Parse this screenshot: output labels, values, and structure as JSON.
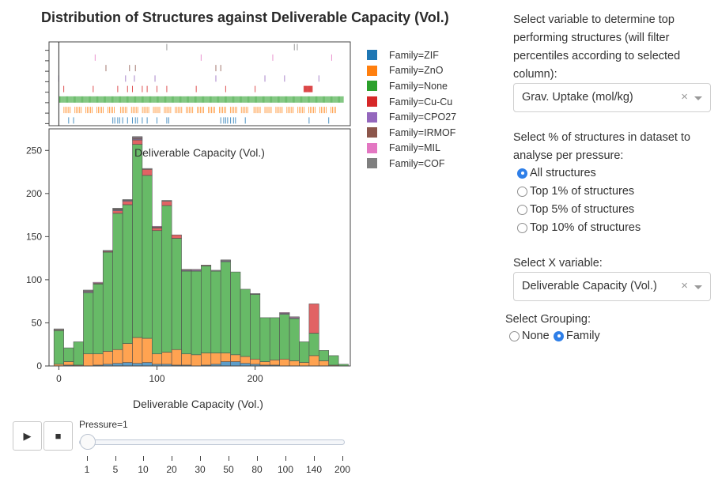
{
  "chart_data": {
    "type": "bar",
    "barmode": "stack",
    "title": "Distribution of Structures against Deliverable Capacity (Vol.)",
    "annotation": "Deliverable Capacity (Vol.)",
    "xlabel": "Deliverable Capacity (Vol.)",
    "ylabel": "",
    "xlim": [
      -10,
      297
    ],
    "ylim": [
      0,
      275
    ],
    "xticks": [
      0,
      100,
      200
    ],
    "yticks": [
      0,
      50,
      100,
      150,
      200,
      250
    ],
    "bin_width": 10,
    "bin_starts": [
      -5,
      5,
      15,
      25,
      35,
      45,
      55,
      65,
      75,
      85,
      95,
      105,
      115,
      125,
      135,
      145,
      155,
      165,
      175,
      185,
      195,
      205,
      215,
      225,
      235,
      245,
      255,
      265,
      275,
      285
    ],
    "series": [
      {
        "name": "Family=ZIF",
        "color": "#1f77b4",
        "values": [
          0,
          1,
          0,
          0,
          1,
          2,
          3,
          4,
          3,
          4,
          2,
          2,
          1,
          1,
          0,
          1,
          2,
          5,
          5,
          3,
          2,
          1,
          1,
          0,
          0,
          0,
          0,
          0,
          0,
          0
        ]
      },
      {
        "name": "Family=ZnO",
        "color": "#ff7f0e",
        "values": [
          2,
          4,
          1,
          14,
          13,
          15,
          16,
          22,
          30,
          28,
          12,
          14,
          18,
          13,
          13,
          14,
          13,
          10,
          8,
          8,
          6,
          4,
          6,
          8,
          6,
          4,
          12,
          6,
          1,
          0
        ]
      },
      {
        "name": "Family=None",
        "color": "#2ca02c",
        "values": [
          39,
          16,
          27,
          71,
          81,
          115,
          158,
          161,
          224,
          189,
          143,
          170,
          129,
          96,
          97,
          101,
          95,
          106,
          96,
          78,
          75,
          51,
          49,
          52,
          49,
          24,
          26,
          12,
          11,
          2
        ]
      },
      {
        "name": "Family=Cu-Cu",
        "color": "#d62728",
        "values": [
          0,
          0,
          0,
          0,
          0,
          1,
          3,
          4,
          5,
          7,
          3,
          5,
          4,
          0,
          0,
          0,
          0,
          0,
          0,
          0,
          0,
          0,
          0,
          0,
          0,
          0,
          34,
          0,
          0,
          0
        ]
      },
      {
        "name": "Family=CPO27",
        "color": "#9467bd",
        "values": [
          0,
          0,
          0,
          1,
          0,
          0,
          1,
          1,
          1,
          0,
          0,
          0,
          0,
          1,
          1,
          0,
          0,
          1,
          0,
          0,
          0,
          0,
          0,
          1,
          1,
          0,
          0,
          0,
          0,
          0
        ]
      },
      {
        "name": "Family=IRMOF",
        "color": "#8c564b",
        "values": [
          1,
          0,
          0,
          1,
          1,
          0,
          1,
          0,
          1,
          0,
          1,
          0,
          0,
          1,
          0,
          1,
          0,
          0,
          0,
          0,
          0,
          0,
          0,
          0,
          0,
          0,
          0,
          0,
          0,
          0
        ]
      },
      {
        "name": "Family=MIL",
        "color": "#e377c2",
        "values": [
          0,
          0,
          0,
          0,
          1,
          0,
          0,
          0,
          1,
          0,
          1,
          0,
          0,
          0,
          1,
          0,
          0,
          0,
          0,
          0,
          0,
          0,
          0,
          1,
          1,
          0,
          0,
          0,
          0,
          0
        ]
      },
      {
        "name": "Family=COF",
        "color": "#7f7f7f",
        "values": [
          1,
          0,
          0,
          1,
          0,
          1,
          1,
          1,
          1,
          1,
          0,
          1,
          0,
          0,
          0,
          0,
          1,
          1,
          0,
          0,
          1,
          0,
          0,
          0,
          0,
          0,
          0,
          0,
          0,
          0
        ]
      }
    ],
    "rug": {
      "order_top_to_bottom": [
        "Family=COF",
        "Family=MIL",
        "Family=IRMOF",
        "Family=CPO27",
        "Family=Cu-Cu",
        "Family=None",
        "Family=ZnO",
        "Family=ZIF"
      ],
      "points": {
        "Family=COF": [
          110,
          240,
          243
        ],
        "Family=MIL": [
          -32,
          37,
          145,
          218,
          278
        ],
        "Family=IRMOF": [
          -18,
          48,
          72,
          78,
          160,
          165
        ],
        "Family=CPO27": [
          0,
          68,
          77,
          98,
          160,
          210,
          230,
          265
        ],
        "Family=Cu-Cu": [
          5,
          35,
          60,
          70,
          75,
          85,
          90,
          100,
          110,
          140,
          170,
          200,
          250,
          251,
          252,
          253,
          254,
          255,
          256,
          257,
          258
        ],
        "Family=None": [
          0,
          290
        ],
        "Family=ZnO": [
          2,
          282
        ],
        "Family=ZIF": [
          10,
          15,
          55,
          57,
          60,
          62,
          65,
          70,
          75,
          78,
          80,
          85,
          90,
          100,
          110,
          112,
          165,
          168,
          170,
          172,
          175,
          178,
          180,
          190,
          255,
          275
        ]
      }
    }
  },
  "legend": {
    "items": [
      {
        "label": "Family=ZIF",
        "color": "#1f77b4"
      },
      {
        "label": "Family=ZnO",
        "color": "#ff7f0e"
      },
      {
        "label": "Family=None",
        "color": "#2ca02c"
      },
      {
        "label": "Family=Cu-Cu",
        "color": "#d62728"
      },
      {
        "label": "Family=CPO27",
        "color": "#9467bd"
      },
      {
        "label": "Family=IRMOF",
        "color": "#8c564b"
      },
      {
        "label": "Family=MIL",
        "color": "#e377c2"
      },
      {
        "label": "Family=COF",
        "color": "#7f7f7f"
      }
    ]
  },
  "animation": {
    "play_icon": "play-icon",
    "stop_icon": "stop-icon",
    "slider_label": "Pressure=1",
    "slider_value": "1",
    "slider_ticks": [
      "1",
      "5",
      "10",
      "20",
      "30",
      "50",
      "80",
      "100",
      "140",
      "200"
    ]
  },
  "controls": {
    "top_variable_label": "Select variable to determine top performing structures (will filter percentiles according to selected column):",
    "top_variable_value": "Grav. Uptake (mol/kg)",
    "percent_label": "Select % of structures in dataset to analyse per pressure:",
    "percent_options": [
      "All structures",
      "Top 1% of structures",
      "Top 5% of structures",
      "Top 10% of structures"
    ],
    "percent_selected": "All structures",
    "x_variable_label": "Select X variable:",
    "x_variable_value": "Deliverable Capacity (Vol.)",
    "grouping_label": "Select Grouping:",
    "grouping_options": [
      "None",
      "Family"
    ],
    "grouping_selected": "Family",
    "clear_glyph": "×"
  }
}
